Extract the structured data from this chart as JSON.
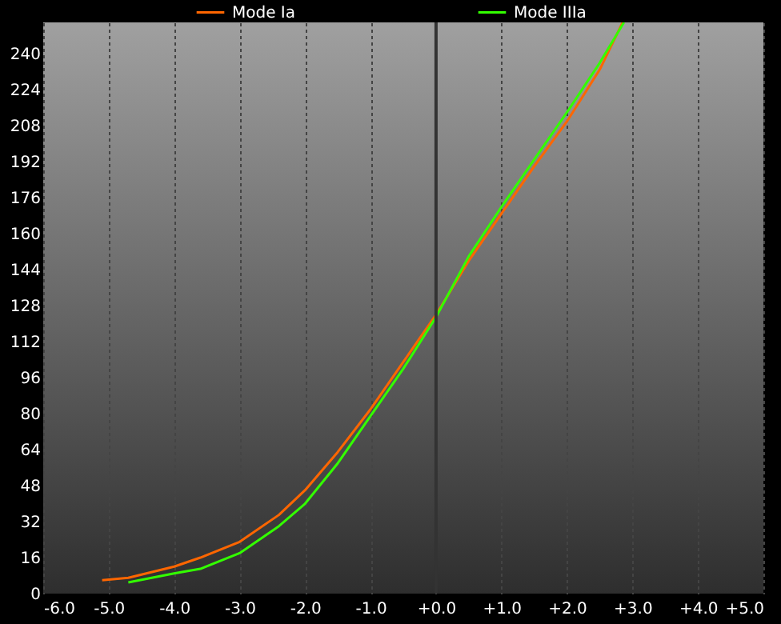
{
  "chart_data": {
    "type": "line",
    "xlim": [
      -6.0,
      5.0
    ],
    "xticks": [
      {
        "value": -6,
        "label": "-6.0"
      },
      {
        "value": -5,
        "label": "-5.0"
      },
      {
        "value": -4,
        "label": "-4.0"
      },
      {
        "value": -3,
        "label": "-3.0"
      },
      {
        "value": -2,
        "label": "-2.0"
      },
      {
        "value": -1,
        "label": "-1.0"
      },
      {
        "value": 0,
        "label": "+0.0"
      },
      {
        "value": 1,
        "label": "+1.0"
      },
      {
        "value": 2,
        "label": "+2.0"
      },
      {
        "value": 3,
        "label": "+3.0"
      },
      {
        "value": 4,
        "label": "+4.0"
      },
      {
        "value": 5,
        "label": "+5.0"
      }
    ],
    "ylim": [
      0,
      254
    ],
    "yticks": [
      0,
      16,
      32,
      48,
      64,
      80,
      96,
      112,
      128,
      144,
      160,
      176,
      192,
      208,
      224,
      240
    ],
    "grid": "x",
    "legend": "top",
    "line_style": "solid",
    "ref_lines": [
      {
        "axis": "x",
        "value": 0,
        "color": "#333333"
      }
    ],
    "series": [
      {
        "name": "Mode Ia",
        "color": "#ff6600",
        "x": [
          -5.1,
          -4.7,
          -4.0,
          -3.6,
          -3.0,
          -2.4,
          -2.0,
          -1.5,
          -1.0,
          -0.5,
          0.0,
          0.5,
          1.0,
          1.5,
          2.0,
          2.5,
          2.85
        ],
        "values": [
          6,
          7,
          12,
          16,
          23,
          35,
          46,
          63,
          82,
          103,
          124,
          148,
          169,
          190,
          210,
          233,
          254
        ]
      },
      {
        "name": "Mode IIIa",
        "color": "#33ff00",
        "x": [
          -4.7,
          -4.0,
          -3.6,
          -3.0,
          -2.4,
          -2.0,
          -1.5,
          -1.0,
          -0.5,
          0.0,
          0.5,
          1.0,
          1.5,
          2.0,
          2.5,
          2.87
        ],
        "values": [
          5,
          9,
          11,
          18,
          30,
          40,
          58,
          79,
          100,
          123,
          150,
          172,
          193,
          214,
          236,
          254
        ]
      }
    ]
  }
}
